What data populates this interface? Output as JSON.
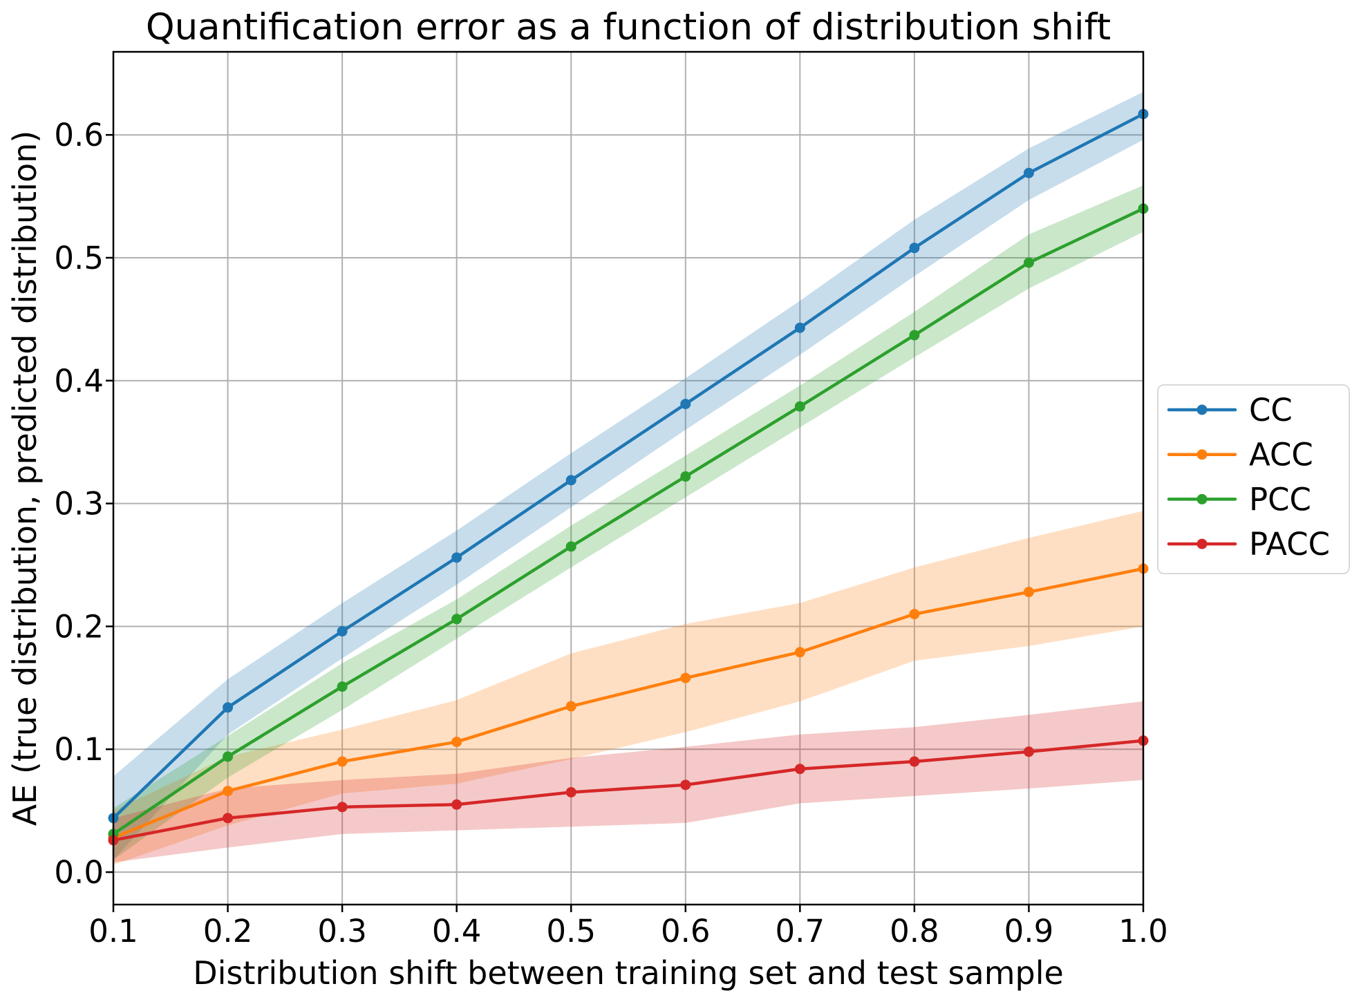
{
  "chart_data": {
    "type": "line",
    "title": "Quantification error as a function of distribution shift",
    "xlabel": "Distribution shift between training set and test sample",
    "ylabel": "AE (true distribution, predicted distribution)",
    "x": [
      0.1,
      0.2,
      0.3,
      0.4,
      0.5,
      0.6,
      0.7,
      0.8,
      0.9,
      1.0
    ],
    "series": [
      {
        "name": "CC",
        "color": "#1f77b4",
        "values": [
          0.044,
          0.134,
          0.196,
          0.256,
          0.319,
          0.381,
          0.443,
          0.508,
          0.569,
          0.617
        ],
        "band_lower": [
          0.01,
          0.112,
          0.174,
          0.234,
          0.297,
          0.36,
          0.421,
          0.485,
          0.547,
          0.596
        ],
        "band_upper": [
          0.078,
          0.157,
          0.219,
          0.278,
          0.341,
          0.402,
          0.465,
          0.531,
          0.589,
          0.635
        ]
      },
      {
        "name": "ACC",
        "color": "#ff7f0e",
        "values": [
          0.028,
          0.066,
          0.09,
          0.106,
          0.135,
          0.158,
          0.179,
          0.21,
          0.228,
          0.247
        ],
        "band_lower": [
          0.006,
          0.038,
          0.064,
          0.072,
          0.092,
          0.114,
          0.139,
          0.172,
          0.184,
          0.2
        ],
        "band_upper": [
          0.05,
          0.094,
          0.116,
          0.14,
          0.178,
          0.202,
          0.219,
          0.248,
          0.272,
          0.294
        ]
      },
      {
        "name": "PCC",
        "color": "#2ca02c",
        "values": [
          0.031,
          0.094,
          0.151,
          0.206,
          0.265,
          0.322,
          0.379,
          0.437,
          0.496,
          0.54
        ],
        "band_lower": [
          0.01,
          0.077,
          0.132,
          0.19,
          0.248,
          0.305,
          0.362,
          0.419,
          0.475,
          0.521
        ],
        "band_upper": [
          0.052,
          0.111,
          0.17,
          0.222,
          0.282,
          0.339,
          0.396,
          0.456,
          0.519,
          0.559
        ]
      },
      {
        "name": "PACC",
        "color": "#d62728",
        "values": [
          0.026,
          0.044,
          0.053,
          0.055,
          0.065,
          0.071,
          0.084,
          0.09,
          0.098,
          0.107
        ],
        "band_lower": [
          0.008,
          0.02,
          0.031,
          0.034,
          0.037,
          0.04,
          0.056,
          0.062,
          0.068,
          0.075
        ],
        "band_upper": [
          0.044,
          0.068,
          0.075,
          0.08,
          0.093,
          0.102,
          0.112,
          0.118,
          0.128,
          0.139
        ]
      }
    ],
    "band_opacity": 0.25,
    "xlim": [
      0.1,
      1.0
    ],
    "ylim": [
      -0.0264,
      0.6676
    ],
    "xticks": {
      "values": [
        0.1,
        0.2,
        0.3,
        0.4,
        0.5,
        0.6,
        0.7,
        0.8,
        0.9,
        1.0
      ],
      "labels": [
        "0.1",
        "0.2",
        "0.3",
        "0.4",
        "0.5",
        "0.6",
        "0.7",
        "0.8",
        "0.9",
        "1.0"
      ]
    },
    "yticks": {
      "values": [
        0.0,
        0.1,
        0.2,
        0.3,
        0.4,
        0.5,
        0.6
      ],
      "labels": [
        "0.0",
        "0.1",
        "0.2",
        "0.3",
        "0.4",
        "0.5",
        "0.6"
      ]
    },
    "grid": true,
    "grid_color": "#b0b0b0",
    "spine_color": "#000000",
    "legend": {
      "entries": [
        "CC",
        "ACC",
        "PCC",
        "PACC"
      ],
      "position": "center-right-outside",
      "border_color": "#d9d9d9",
      "background": "#ffffff"
    }
  }
}
